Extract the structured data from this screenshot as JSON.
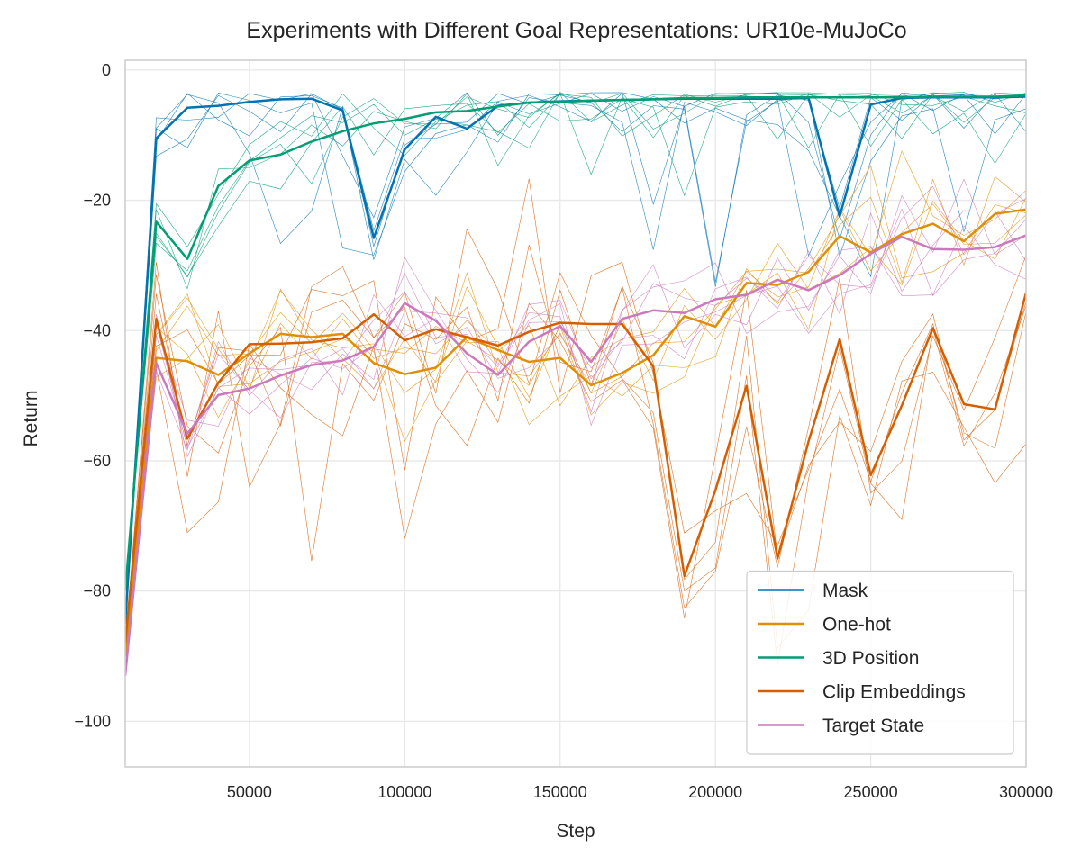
{
  "chart_data": {
    "type": "line",
    "title": "Experiments with Different Goal Representations: UR10e-MuJoCo",
    "xlabel": "Step",
    "ylabel": "Return",
    "xlim": [
      10000,
      300000
    ],
    "ylim": [
      -107,
      1.5
    ],
    "grid": true,
    "legend_position": "bottom-right",
    "x_ticks": [
      50000,
      100000,
      150000,
      200000,
      250000,
      300000
    ],
    "x_tick_labels": [
      "50000",
      "100000",
      "150000",
      "200000",
      "250000",
      "300000"
    ],
    "y_ticks": [
      0,
      -20,
      -40,
      -60,
      -80,
      -100
    ],
    "y_tick_labels": [
      "0",
      "−20",
      "−40",
      "−60",
      "−80",
      "−100"
    ],
    "x": [
      10000,
      20000,
      30000,
      40000,
      50000,
      60000,
      70000,
      80000,
      90000,
      100000,
      110000,
      120000,
      130000,
      140000,
      150000,
      160000,
      170000,
      180000,
      190000,
      200000,
      210000,
      220000,
      230000,
      240000,
      250000,
      260000,
      270000,
      280000,
      290000,
      300000
    ],
    "series": [
      {
        "name": "Mask",
        "color": "#0173b2",
        "values": [
          -85,
          -10.5,
          -5.8,
          -5.5,
          -4.9,
          -4.5,
          -4.4,
          -6.2,
          -25.8,
          -12.2,
          -7.2,
          -9.0,
          -5.5,
          -5.0,
          -4.8,
          -4.7,
          -4.6,
          -4.5,
          -4.4,
          -4.4,
          -4.4,
          -4.4,
          -4.3,
          -22.5,
          -5.3,
          -4.3,
          -4.2,
          -4.2,
          -4.2,
          -4.1
        ]
      },
      {
        "name": "One-hot",
        "color": "#de8f05",
        "values": [
          -90,
          -44.2,
          -44.7,
          -46.8,
          -43.5,
          -40.5,
          -41.0,
          -40.5,
          -45.0,
          -46.7,
          -45.7,
          -41.0,
          -43.0,
          -44.8,
          -44.2,
          -48.4,
          -46.5,
          -43.8,
          -37.8,
          -39.4,
          -32.7,
          -33.0,
          -31.0,
          -25.5,
          -28.0,
          -25.2,
          -23.6,
          -26.3,
          -22.1,
          -21.4
        ]
      },
      {
        "name": "3D Position",
        "color": "#029e73",
        "values": [
          -80,
          -23.3,
          -29.0,
          -17.8,
          -13.9,
          -13.0,
          -11.0,
          -9.4,
          -8.2,
          -7.5,
          -6.5,
          -6.3,
          -5.6,
          -5.0,
          -4.9,
          -4.7,
          -4.6,
          -4.5,
          -4.3,
          -4.3,
          -4.2,
          -4.2,
          -4.2,
          -4.2,
          -4.2,
          -4.2,
          -4.1,
          -4.1,
          -4.1,
          -3.9
        ]
      },
      {
        "name": "Clip Embeddings",
        "color": "#d55e00",
        "values": [
          -88,
          -38.2,
          -56.6,
          -48.0,
          -42.1,
          -42.0,
          -41.8,
          -41.2,
          -37.5,
          -41.5,
          -39.8,
          -41.0,
          -42.3,
          -40.2,
          -38.8,
          -39.0,
          -39.0,
          -45.5,
          -77.7,
          -64.5,
          -48.5,
          -75.0,
          -57.0,
          -41.3,
          -62.2,
          -51.5,
          -39.6,
          -51.3,
          -52.1,
          -34.2
        ]
      },
      {
        "name": "Target State",
        "color": "#cc78bc",
        "values": [
          -93,
          -45.0,
          -55.8,
          -49.9,
          -48.9,
          -46.9,
          -45.3,
          -44.6,
          -42.5,
          -35.8,
          -38.5,
          -43.5,
          -46.8,
          -41.7,
          -39.3,
          -44.8,
          -38.2,
          -36.9,
          -37.3,
          -35.2,
          -34.5,
          -32.2,
          -33.8,
          -31.5,
          -28.2,
          -25.6,
          -27.5,
          -27.6,
          -27.2,
          -25.4
        ]
      }
    ]
  }
}
